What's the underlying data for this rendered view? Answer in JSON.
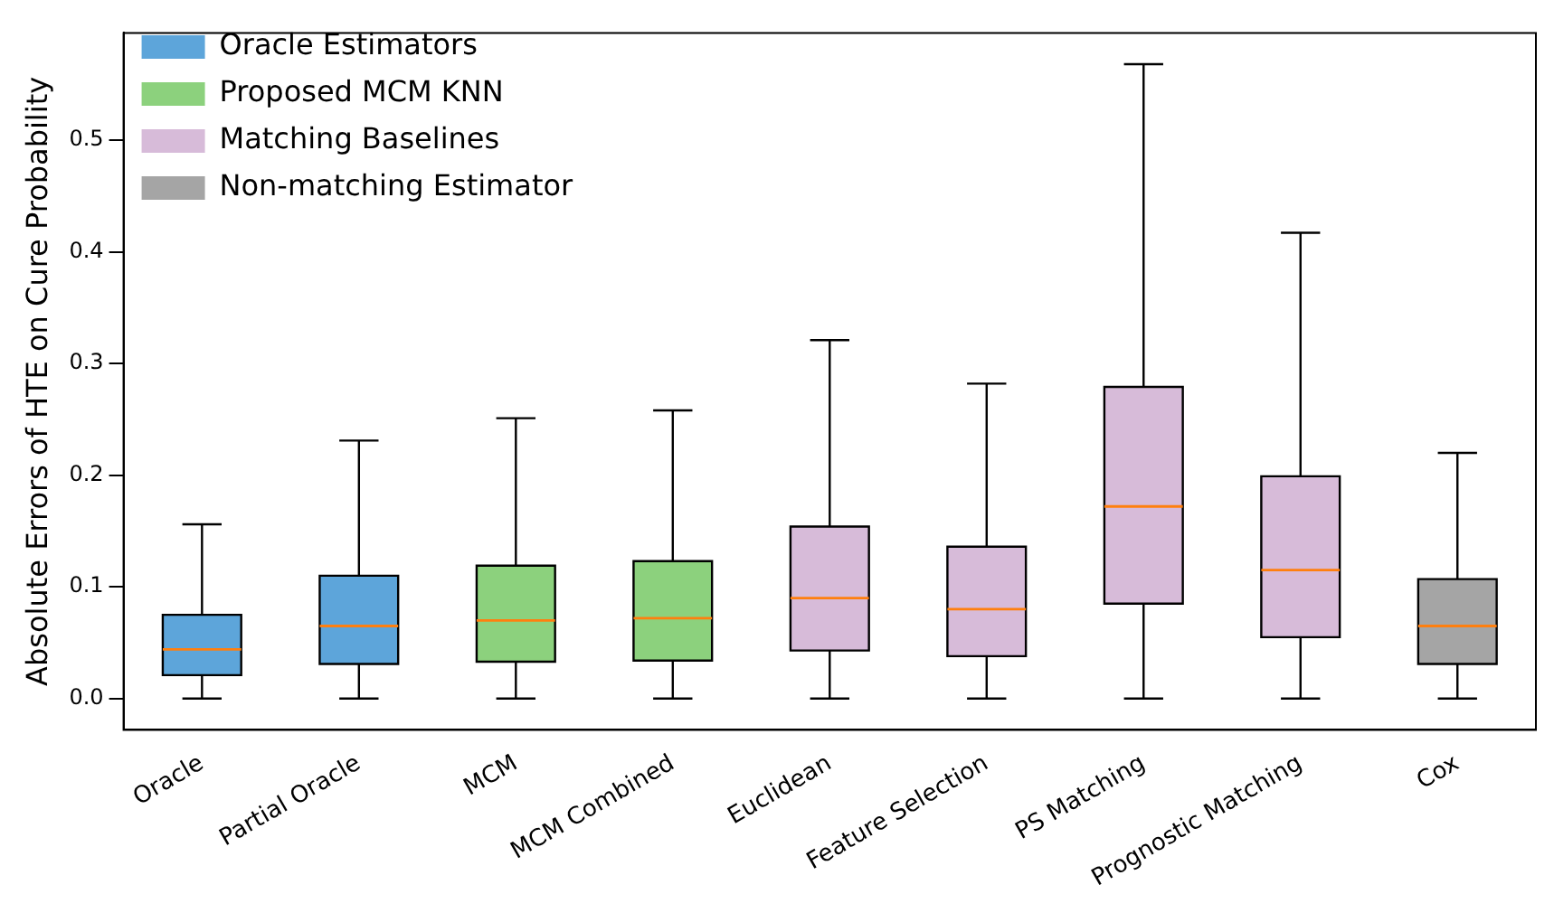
{
  "chart_data": {
    "type": "box",
    "ylabel": "Absolute Errors of HTE on Cure Probability",
    "categories": [
      "Oracle",
      "Partial Oracle",
      "MCM",
      "MCM Combined",
      "Euclidean",
      "Feature Selection",
      "PS Matching",
      "Prognostic Matching",
      "Cox"
    ],
    "ylim": [
      -0.028,
      0.596
    ],
    "yticks": [
      {
        "value": 0,
        "label": "0.0"
      },
      0.1,
      0.2,
      0.3,
      0.4,
      0.5
    ],
    "grid": false,
    "legend": "top left",
    "series": [
      {
        "name": "Oracle Estimators",
        "color": "#5da5da",
        "boxes": [
          {
            "low": 0,
            "q1": 0.021,
            "median": 0.044,
            "q3": 0.075,
            "high": 0.156
          },
          {
            "low": 0,
            "q1": 0.031,
            "median": 0.065,
            "q3": 0.11,
            "high": 0.231
          },
          null,
          null,
          null,
          null,
          null,
          null,
          null
        ]
      },
      {
        "name": "Proposed MCM KNN",
        "color": "#8cd17d",
        "boxes": [
          null,
          null,
          {
            "low": 0,
            "q1": 0.033,
            "median": 0.07,
            "q3": 0.119,
            "high": 0.251
          },
          {
            "low": 0,
            "q1": 0.034,
            "median": 0.072,
            "q3": 0.123,
            "high": 0.258
          },
          null,
          null,
          null,
          null,
          null
        ]
      },
      {
        "name": "Matching Baselines",
        "color": "#d7bbd9",
        "boxes": [
          null,
          null,
          null,
          null,
          {
            "low": 0,
            "q1": 0.043,
            "median": 0.09,
            "q3": 0.154,
            "high": 0.321
          },
          {
            "low": 0,
            "q1": 0.038,
            "median": 0.08,
            "q3": 0.136,
            "high": 0.282
          },
          {
            "low": 0,
            "q1": 0.085,
            "median": 0.172,
            "q3": 0.279,
            "high": 0.568
          },
          {
            "low": 0,
            "q1": 0.055,
            "median": 0.115,
            "q3": 0.199,
            "high": 0.417
          },
          null
        ]
      },
      {
        "name": "Non-matching Estimator",
        "color": "#a5a5a5",
        "boxes": [
          null,
          null,
          null,
          null,
          null,
          null,
          null,
          null,
          {
            "low": 0,
            "q1": 0.031,
            "median": 0.065,
            "q3": 0.107,
            "high": 0.22
          }
        ]
      }
    ]
  }
}
